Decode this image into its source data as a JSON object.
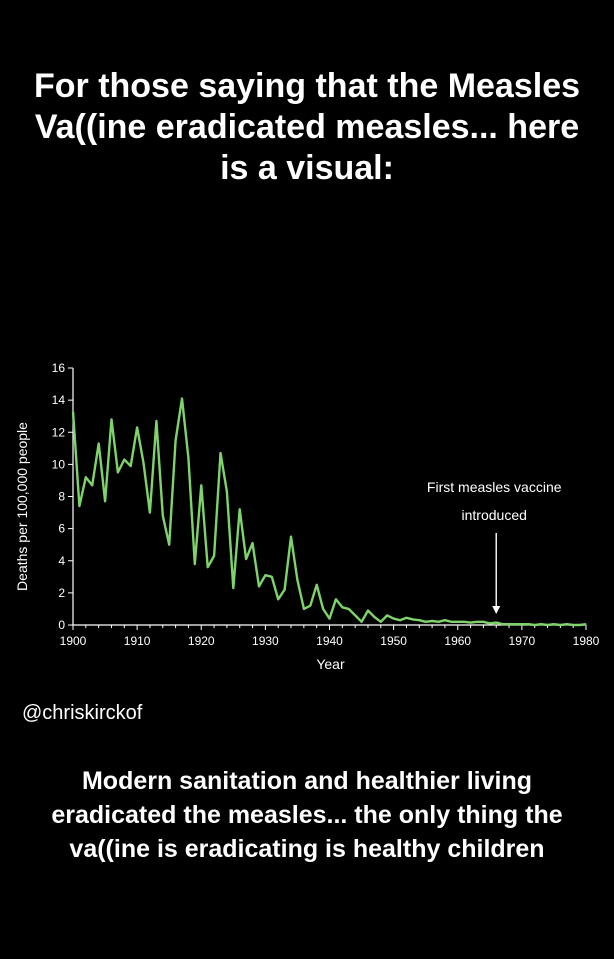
{
  "headline": "For those saying that the Measles Va((ine eradicated measles... here is a visual:",
  "handle": "@chriskirckof",
  "caption": "Modern sanitation and healthier living eradicated the measles... the only thing the va((ine is eradicating is healthy children",
  "colors": {
    "background": "#000000",
    "text": "#ffffff",
    "line": "#7ed36a",
    "axis": "#ffffff"
  },
  "chart_data": {
    "type": "line",
    "title": "",
    "xlabel": "Year",
    "ylabel": "Deaths per 100,000 people",
    "xlim": [
      1900,
      1980
    ],
    "ylim": [
      0,
      16
    ],
    "x_ticks": [
      1900,
      1910,
      1920,
      1930,
      1940,
      1950,
      1960,
      1970,
      1980
    ],
    "y_ticks": [
      0,
      2,
      4,
      6,
      8,
      10,
      12,
      14,
      16
    ],
    "grid": false,
    "legend": "none",
    "series": [
      {
        "x": [
          1900,
          1901,
          1902,
          1903,
          1904,
          1905,
          1906,
          1907,
          1908,
          1909,
          1910,
          1911,
          1912,
          1913,
          1914,
          1915,
          1916,
          1917,
          1918,
          1919,
          1920,
          1921,
          1922,
          1923,
          1924,
          1925,
          1926,
          1927,
          1928,
          1929,
          1930,
          1931,
          1932,
          1933,
          1934,
          1935,
          1936,
          1937,
          1938,
          1939,
          1940,
          1941,
          1942,
          1943,
          1944,
          1945,
          1946,
          1947,
          1948,
          1949,
          1950,
          1951,
          1952,
          1953,
          1954,
          1955,
          1956,
          1957,
          1958,
          1959,
          1960,
          1961,
          1962,
          1963,
          1964,
          1965,
          1966,
          1967,
          1968,
          1969,
          1970,
          1971,
          1972,
          1973,
          1974,
          1975,
          1976,
          1977,
          1978,
          1979,
          1980
        ],
        "values": [
          13.3,
          7.4,
          9.2,
          8.7,
          11.3,
          7.7,
          12.8,
          9.5,
          10.3,
          9.9,
          12.3,
          10.1,
          7.0,
          12.7,
          6.8,
          5.0,
          11.5,
          14.1,
          10.4,
          3.8,
          8.7,
          3.6,
          4.3,
          10.7,
          8.3,
          2.3,
          7.2,
          4.1,
          5.1,
          2.4,
          3.1,
          3.0,
          1.6,
          2.2,
          5.5,
          2.8,
          1.0,
          1.2,
          2.5,
          1.0,
          0.4,
          1.6,
          1.1,
          1.0,
          0.6,
          0.2,
          0.9,
          0.5,
          0.2,
          0.6,
          0.4,
          0.3,
          0.45,
          0.35,
          0.3,
          0.2,
          0.25,
          0.2,
          0.3,
          0.2,
          0.2,
          0.2,
          0.15,
          0.2,
          0.2,
          0.1,
          0.15,
          0.05,
          0.05,
          0.05,
          0.05,
          0.05,
          0.0,
          0.05,
          0.0,
          0.05,
          0.0,
          0.05,
          0.0,
          0.0,
          0.05
        ]
      }
    ],
    "annotations": [
      {
        "lines": [
          "First measles vaccine",
          "introduced"
        ],
        "x": 1966,
        "y": 0.5
      }
    ]
  }
}
